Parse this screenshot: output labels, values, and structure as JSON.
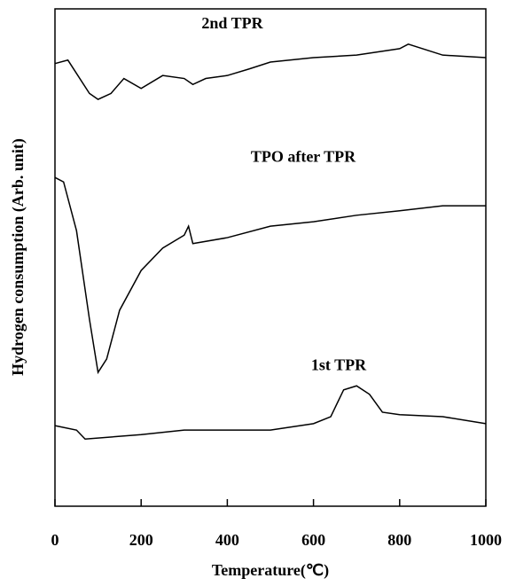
{
  "chart_data": {
    "type": "line",
    "x_label": "Temperature(℃)",
    "y_label": "Hydrogen consumption (Arb. unit)",
    "xlim": [
      0,
      1000
    ],
    "xticks": [
      0,
      200,
      400,
      600,
      800,
      1000
    ],
    "ylim": [
      0,
      100
    ],
    "series": [
      {
        "name": "2nd TPR",
        "color": "#000000",
        "x": [
          0,
          30,
          80,
          100,
          130,
          160,
          200,
          250,
          300,
          320,
          350,
          400,
          450,
          500,
          600,
          700,
          800,
          820,
          900,
          1000
        ],
        "values": [
          89,
          89.7,
          83,
          81.8,
          83,
          86,
          84,
          86.6,
          86,
          84.8,
          86,
          86.6,
          87.9,
          89.3,
          90.2,
          90.7,
          92,
          92.9,
          90.7,
          90.2
        ]
      },
      {
        "name": "TPO after TPR",
        "color": "#000000",
        "x": [
          0,
          20,
          50,
          80,
          100,
          120,
          150,
          200,
          250,
          300,
          310,
          320,
          400,
          500,
          600,
          700,
          800,
          900,
          1000
        ],
        "values": [
          66.1,
          65.2,
          55.4,
          37.6,
          26.9,
          29.6,
          39.4,
          47.4,
          51.9,
          54.5,
          56.3,
          52.8,
          54,
          56.3,
          57.2,
          58.5,
          59.4,
          60.4,
          60.4
        ]
      },
      {
        "name": "1st TPR",
        "color": "#000000",
        "x": [
          0,
          50,
          70,
          200,
          300,
          500,
          600,
          640,
          670,
          700,
          730,
          760,
          800,
          900,
          1000
        ],
        "values": [
          16.2,
          15.3,
          13.5,
          14.4,
          15.3,
          15.3,
          16.6,
          18,
          23.4,
          24.2,
          22.5,
          18.9,
          18.4,
          18,
          16.6
        ]
      }
    ]
  }
}
